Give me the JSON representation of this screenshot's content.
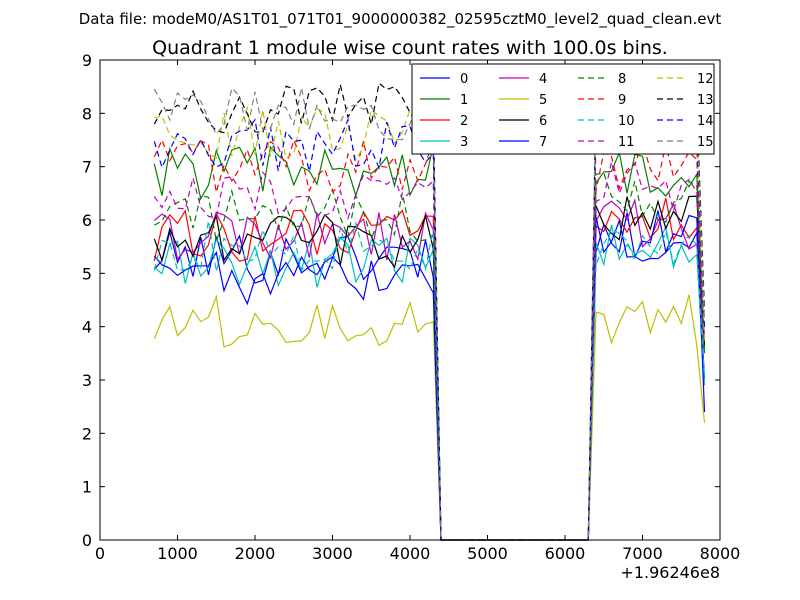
{
  "figure": {
    "suptitle": "Data file: modeM0/AS1T01_071T01_9000000382_02595cztM0_level2_quad_clean.evt"
  },
  "chart_data": {
    "type": "line",
    "title": "Quadrant 1 module wise count rates with 100.0s bins.",
    "xlabel": "",
    "ylabel": "",
    "x_offset_label": "+1.96246e8",
    "xlim": [
      0,
      8000
    ],
    "ylim": [
      0,
      9
    ],
    "xticks": [
      0,
      1000,
      2000,
      3000,
      4000,
      5000,
      6000,
      7000,
      8000
    ],
    "yticks": [
      0,
      1,
      2,
      3,
      4,
      5,
      6,
      7,
      8,
      9
    ],
    "grid": false,
    "legend_location": "top-right",
    "legend_columns": 4,
    "x_start": 700,
    "x_step": 100,
    "gap": {
      "last_before": 4300,
      "drop_to": 4400,
      "rise_from": 6300,
      "first_after": 6400
    },
    "x_end": 7800,
    "series": [
      {
        "name": "0",
        "color": "#0000ff",
        "dash": "solid",
        "level_before": 5.3,
        "level_after": 5.7,
        "end_value": 3.0
      },
      {
        "name": "1",
        "color": "#008000",
        "dash": "solid",
        "level_before": 6.9,
        "level_after": 6.9,
        "end_value": 3.5
      },
      {
        "name": "2",
        "color": "#ff0000",
        "dash": "solid",
        "level_before": 5.7,
        "level_after": 6.0,
        "end_value": 3.6
      },
      {
        "name": "3",
        "color": "#00bfbf",
        "dash": "solid",
        "level_before": 5.2,
        "level_after": 5.6,
        "end_value": 2.9
      },
      {
        "name": "4",
        "color": "#bf00bf",
        "dash": "solid",
        "level_before": 5.7,
        "level_after": 5.9,
        "end_value": 3.8
      },
      {
        "name": "5",
        "color": "#bfbf00",
        "dash": "solid",
        "level_before": 4.1,
        "level_after": 4.1,
        "end_value": 2.2
      },
      {
        "name": "6",
        "color": "#000000",
        "dash": "solid",
        "level_before": 5.6,
        "level_after": 6.0,
        "end_value": 3.6
      },
      {
        "name": "7",
        "color": "#0000ff",
        "dash": "solid",
        "level_before": 4.9,
        "level_after": 5.7,
        "end_value": 2.4
      },
      {
        "name": "8",
        "color": "#008000",
        "dash": "dashed",
        "level_before": 6.1,
        "level_after": 6.4,
        "end_value": 3.6
      },
      {
        "name": "9",
        "color": "#ff0000",
        "dash": "dashed",
        "level_before": 7.0,
        "level_after": 7.0,
        "end_value": 3.8
      },
      {
        "name": "10",
        "color": "#00bfbf",
        "dash": "dashed",
        "level_before": 5.5,
        "level_after": 5.5,
        "end_value": 3.0
      },
      {
        "name": "11",
        "color": "#bf00bf",
        "dash": "dashed",
        "level_before": 6.5,
        "level_after": 6.6,
        "end_value": 3.8
      },
      {
        "name": "12",
        "color": "#bfbf00",
        "dash": "dashed",
        "level_before": 7.6,
        "level_after": 7.7,
        "end_value": 3.7
      },
      {
        "name": "13",
        "color": "#000000",
        "dash": "dashed",
        "level_before": 8.1,
        "level_after": 8.4,
        "end_value": 4.3
      },
      {
        "name": "14",
        "color": "#0000ff",
        "dash": "dashed",
        "level_before": 7.4,
        "level_after": 7.8,
        "end_value": 4.0
      },
      {
        "name": "15",
        "color": "#808080",
        "dash": "dashed",
        "level_before": 8.0,
        "level_after": 8.3,
        "end_value": 4.1
      }
    ]
  }
}
